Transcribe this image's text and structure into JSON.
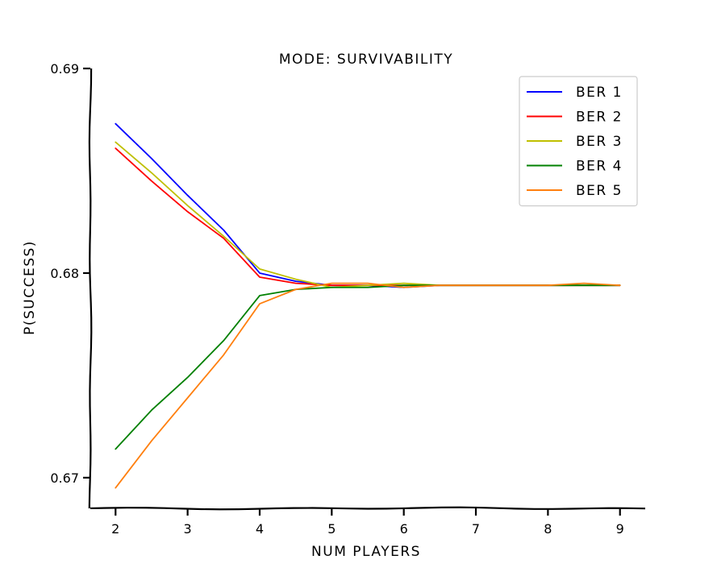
{
  "chart_data": {
    "type": "line",
    "title": "MODE: SURVIVABILITY",
    "xlabel": "NUM PLAYERS",
    "ylabel": "P(SUCCESS)",
    "xlim": [
      1.65,
      9.35
    ],
    "ylim": [
      0.6685,
      0.69
    ],
    "xticks": [
      2,
      3,
      4,
      5,
      6,
      7,
      8,
      9
    ],
    "xtick_labels": [
      "2",
      "3",
      "4",
      "5",
      "6",
      "7",
      "8",
      "9"
    ],
    "yticks": [
      0.67,
      0.68,
      0.69
    ],
    "ytick_labels": [
      "0.67",
      "0.68",
      "0.69"
    ],
    "legend_position": "top-right",
    "grid": false,
    "x": [
      2,
      2.5,
      3,
      3.5,
      4,
      4.5,
      5,
      5.5,
      6,
      6.5,
      7,
      7.5,
      8,
      8.5,
      9
    ],
    "series": [
      {
        "name": "BER 1",
        "color": "#0000ff",
        "values": [
          0.6873,
          0.6856,
          0.6838,
          0.6821,
          0.68,
          0.6796,
          0.6794,
          0.6794,
          0.6793,
          0.6794,
          0.6794,
          0.6794,
          0.6794,
          0.6794,
          0.6794
        ]
      },
      {
        "name": "BER 2",
        "color": "#ff0000",
        "values": [
          0.6861,
          0.6845,
          0.683,
          0.6817,
          0.6798,
          0.6795,
          0.6794,
          0.6794,
          0.6794,
          0.6794,
          0.6794,
          0.6794,
          0.6794,
          0.6794,
          0.6794
        ]
      },
      {
        "name": "BER 3",
        "color": "#bfbf00",
        "values": [
          0.6864,
          0.6849,
          0.6833,
          0.6818,
          0.6802,
          0.6797,
          0.6793,
          0.6794,
          0.6795,
          0.6794,
          0.6794,
          0.6794,
          0.6794,
          0.6794,
          0.6794
        ]
      },
      {
        "name": "BER 4",
        "color": "#008000",
        "values": [
          0.6714,
          0.6733,
          0.6749,
          0.6767,
          0.6789,
          0.6792,
          0.6793,
          0.6793,
          0.6794,
          0.6794,
          0.6794,
          0.6794,
          0.6794,
          0.6794,
          0.6794
        ]
      },
      {
        "name": "BER 5",
        "color": "#ff7f0e",
        "values": [
          0.6695,
          0.6718,
          0.6739,
          0.676,
          0.6785,
          0.6792,
          0.6795,
          0.6795,
          0.6793,
          0.6794,
          0.6794,
          0.6794,
          0.6794,
          0.6795,
          0.6794
        ]
      }
    ]
  }
}
